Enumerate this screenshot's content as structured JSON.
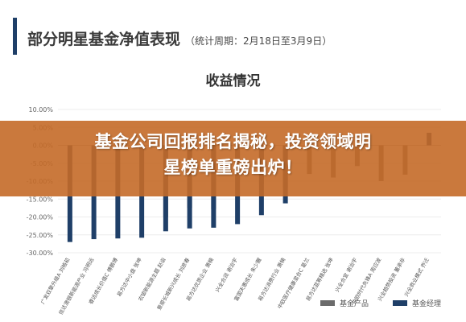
{
  "header": {
    "title": "部分明星基金净值表现",
    "period": "（统计周期：2月18日至3月9日）"
  },
  "banner": {
    "line1": "基金公司回报排名揭秘，投资领域明",
    "line2": "星榜单重磅出炉！"
  },
  "colors": {
    "accent": "#1f3f68",
    "fund_product": "#6b6b6b",
    "fund_manager": "#1f3f68",
    "banner": "#c46a28"
  },
  "chart_data": {
    "type": "bar",
    "title": "收益情况",
    "ylim": [
      -30,
      10
    ],
    "ytick_values": [
      10,
      5,
      0,
      -5,
      -10,
      -15,
      -20,
      -25,
      -30
    ],
    "ytick_labels": [
      "10.00%",
      "5.00%",
      "0.00%",
      "-5.00%",
      "-10.00%",
      "-15.00%",
      "-20.00%",
      "-25.00%",
      "-30.00%"
    ],
    "grid": true,
    "legend_position": "bottom-right",
    "categories": [
      "广发双擎升级A 刘格菘",
      "信达澳银新能源产业 冯明远",
      "睿远成长价值C 傅鹏博",
      "易方达中小盘 张坤",
      "农银新能源主题 赵诣",
      "景顺长城新兴成长 刘彦春",
      "易方达优质企业 萧楠",
      "兴全合润 谢治宇",
      "富国天惠成长 朱少醒",
      "易方达消费行业 萧楠",
      "中欧医疗健康混合C 葛兰",
      "易方达蓝筹精选 张坤",
      "兴全合宜 谢治宇",
      "中欧时代先锋A 周应波",
      "兴全趋势投资 董承非",
      "兴全商业模式 乔迁"
    ],
    "series": [
      {
        "name": "基金产品",
        "values": [
          0,
          0,
          0,
          0,
          -20.0,
          -17.5,
          -17.8,
          -9.6,
          -10.8,
          -11.8,
          -8.0,
          -9.0,
          -5.8,
          -10.0,
          -8.2,
          0
        ]
      },
      {
        "name": "基金经理",
        "values": [
          -27.0,
          -26.2,
          -26.0,
          -25.8,
          -24.0,
          -23.2,
          -23.0,
          -22.0,
          -19.5,
          -16.2,
          0,
          0,
          0,
          0,
          0,
          3.5
        ]
      }
    ]
  }
}
